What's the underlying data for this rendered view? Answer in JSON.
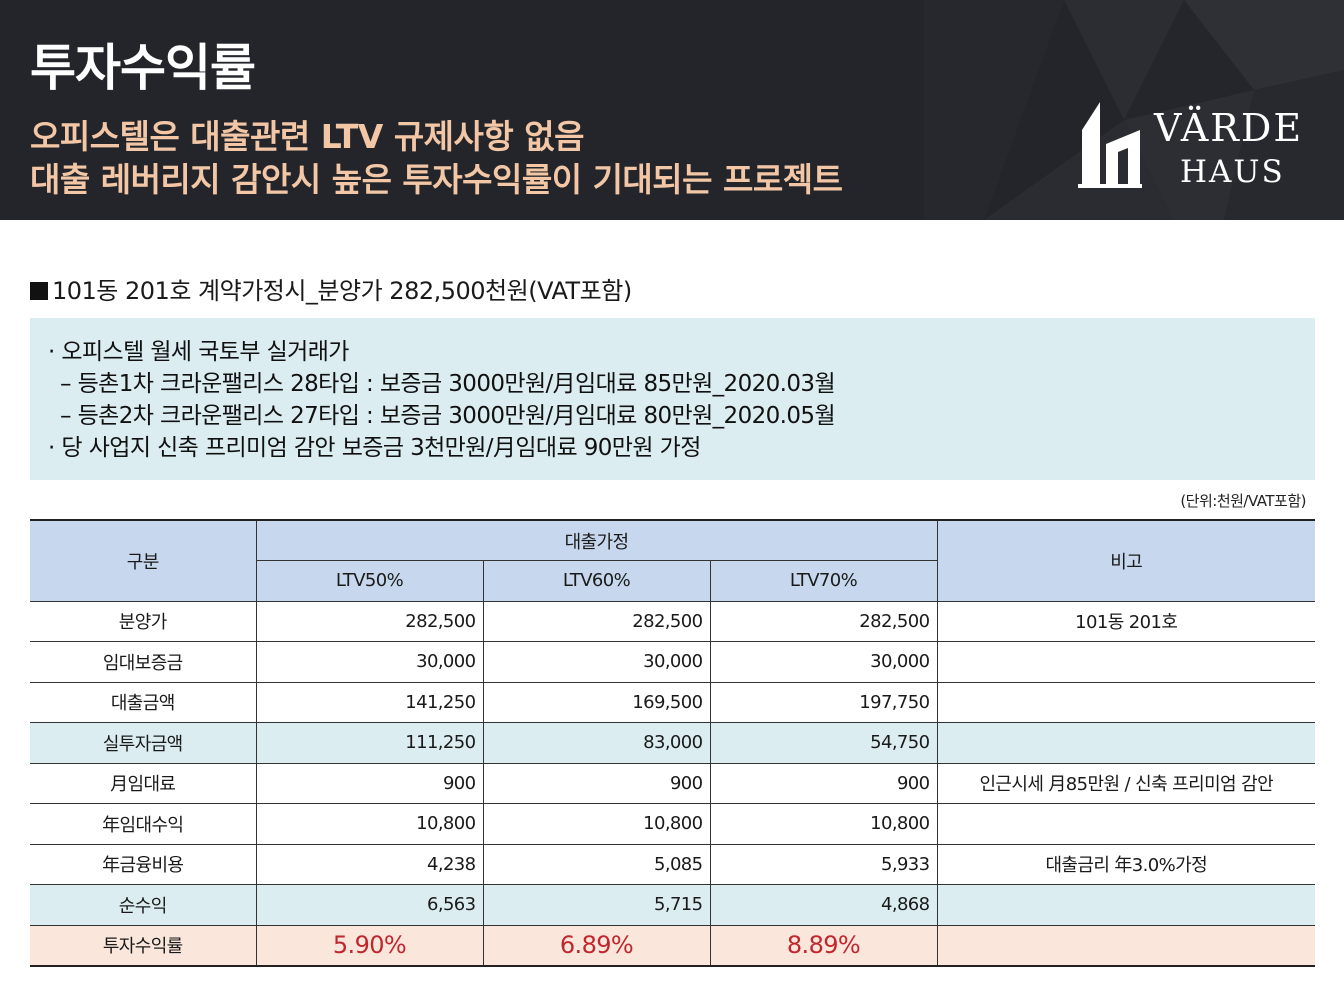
{
  "header": {
    "title": "투자수익률",
    "subtitle_line1": "오피스텔은 대출관련 LTV 규제사항 없음",
    "subtitle_line2": "대출 레버리지 감안시 높은 투자수익률이 기대되는 프로젝트",
    "logo_line1": "VÄRDE",
    "logo_line2": "HAUS"
  },
  "section": {
    "title": "101동 201호 계약가정시_분양가 282,500천원(VAT포함)"
  },
  "info": {
    "line1": "· 오피스텔 월세 국토부 실거래가",
    "line2": "– 등촌1차 크라운팰리스 28타입 : 보증금 3000만원/月임대료 85만원_2020.03월",
    "line3": "– 등촌2차 크라운팰리스 27타입 : 보증금 3000만원/月임대료 80만원_2020.05월",
    "line4": "· 당 사업지 신축 프리미엄 감안 보증금 3천만원/月임대료 90만원 가정"
  },
  "unit_note": "(단위:천원/VAT포함)",
  "table": {
    "head_category": "구분",
    "head_group": "대출가정",
    "head_ltv50": "LTV50%",
    "head_ltv60": "LTV60%",
    "head_ltv70": "LTV70%",
    "head_note": "비고",
    "rows": [
      {
        "label": "분양가",
        "v1": "282,500",
        "v2": "282,500",
        "v3": "282,500",
        "note": "101동 201호"
      },
      {
        "label": "임대보증금",
        "v1": "30,000",
        "v2": "30,000",
        "v3": "30,000",
        "note": ""
      },
      {
        "label": "대출금액",
        "v1": "141,250",
        "v2": "169,500",
        "v3": "197,750",
        "note": ""
      },
      {
        "label": "실투자금액",
        "v1": "111,250",
        "v2": "83,000",
        "v3": "54,750",
        "note": ""
      },
      {
        "label": "月임대료",
        "v1": "900",
        "v2": "900",
        "v3": "900",
        "note": "인근시세 月85만원 / 신축 프리미엄 감안"
      },
      {
        "label": "年임대수익",
        "v1": "10,800",
        "v2": "10,800",
        "v3": "10,800",
        "note": ""
      },
      {
        "label": "年금융비용",
        "v1": "4,238",
        "v2": "5,085",
        "v3": "5,933",
        "note": "대출금리 年3.0%가정"
      },
      {
        "label": "순수익",
        "v1": "6,563",
        "v2": "5,715",
        "v3": "4,868",
        "note": ""
      },
      {
        "label": "투자수익률",
        "v1": "5.90%",
        "v2": "6.89%",
        "v3": "8.89%",
        "note": ""
      }
    ]
  },
  "colors": {
    "header_bg": "#23252a",
    "subtitle": "#f3c7a6",
    "info_bg": "#dcedf1",
    "table_head_bg": "#c7d8ee",
    "roi_row_bg": "#fbe6dc",
    "roi_text": "#c0272d"
  }
}
